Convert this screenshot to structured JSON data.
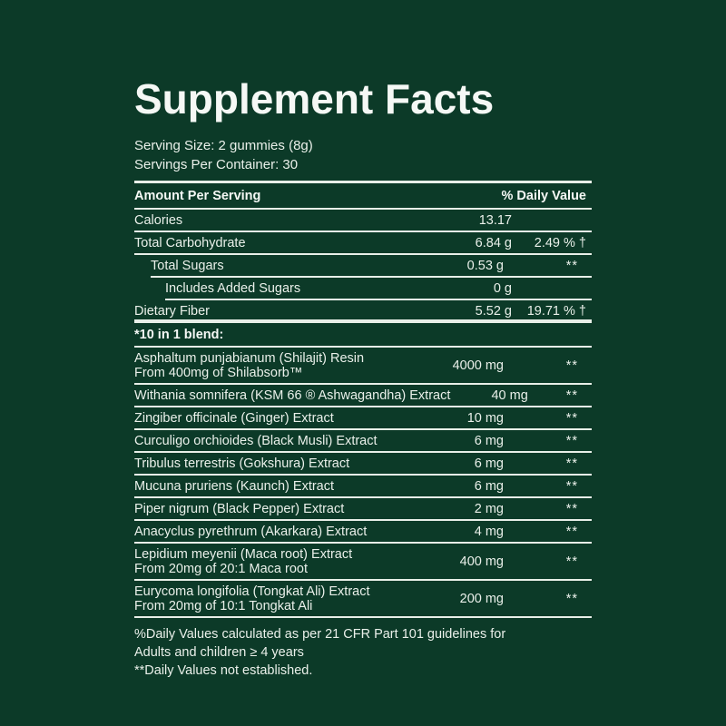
{
  "title": "Supplement Facts",
  "serving": {
    "size": "Serving Size: 2 gummies (8g)",
    "per_container": "Servings Per Container: 30"
  },
  "colors": {
    "background": "#0C3A28",
    "text": "#EAF0EA",
    "rules": "#E8EFE8"
  },
  "table": {
    "header": {
      "left": "Amount Per Serving",
      "right": "% Daily Value"
    },
    "rows": [
      {
        "name": "Calories",
        "amount": "13.17",
        "dv": "",
        "indent": 0
      },
      {
        "name": "Total Carbohydrate",
        "amount": "6.84 g",
        "dv": "2.49 % †",
        "indent": 0
      },
      {
        "name": "Total Sugars",
        "amount": "0.53 g",
        "dv": "**",
        "indent": 1
      },
      {
        "name": "Includes Added Sugars",
        "amount": "0 g",
        "dv": "",
        "indent": 2
      },
      {
        "name": "Dietary Fiber",
        "amount": "5.52 g",
        "dv": "19.71 % †",
        "indent": 0
      }
    ],
    "blend_heading": "*10 in 1 blend:",
    "blend_rows": [
      {
        "name": "Asphaltum punjabianum (Shilajit) Resin",
        "sub": "From 400mg of Shilabsorb™",
        "amount": "4000 mg",
        "dv": "**"
      },
      {
        "name": "Withania somnifera (KSM 66 ® Ashwagandha) Extract",
        "sub": "",
        "amount": "40 mg",
        "dv": "**"
      },
      {
        "name": "Zingiber officinale (Ginger) Extract",
        "sub": "",
        "amount": "10 mg",
        "dv": "**"
      },
      {
        "name": "Curculigo orchioides (Black Musli) Extract",
        "sub": "",
        "amount": "6 mg",
        "dv": "**"
      },
      {
        "name": "Tribulus terrestris (Gokshura) Extract",
        "sub": "",
        "amount": "6 mg",
        "dv": "**"
      },
      {
        "name": "Mucuna pruriens (Kaunch) Extract",
        "sub": "",
        "amount": "6 mg",
        "dv": "**"
      },
      {
        "name": "Piper nigrum (Black Pepper) Extract",
        "sub": "",
        "amount": "2 mg",
        "dv": "**"
      },
      {
        "name": "Anacyclus pyrethrum (Akarkara) Extract",
        "sub": "",
        "amount": "4 mg",
        "dv": "**"
      },
      {
        "name": "Lepidium meyenii (Maca root) Extract",
        "sub": "From 20mg of 20:1 Maca root",
        "amount": "400 mg",
        "dv": "**"
      },
      {
        "name": "Eurycoma longifolia (Tongkat Ali) Extract",
        "sub": "From 20mg of 10:1 Tongkat Ali",
        "amount": "200 mg",
        "dv": "**"
      }
    ]
  },
  "footnotes": {
    "line1": "%Daily Values calculated as per 21 CFR Part 101 guidelines for",
    "line2": "Adults and children ≥ 4 years",
    "line3": "**Daily Values not established."
  }
}
